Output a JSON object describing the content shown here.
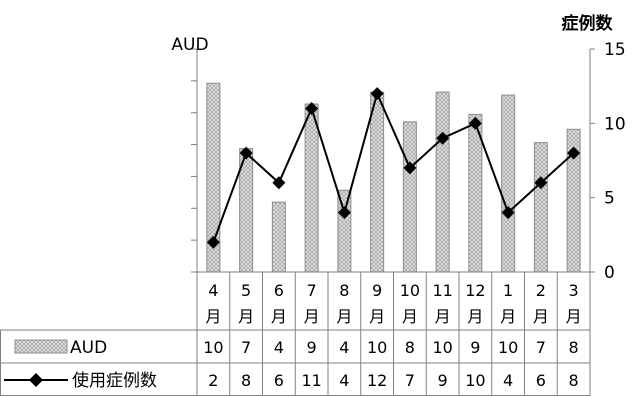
{
  "chart_data": {
    "type": "bar",
    "categories": [
      [
        "4",
        "月"
      ],
      [
        "5",
        "月"
      ],
      [
        "6",
        "月"
      ],
      [
        "7",
        "月"
      ],
      [
        "8",
        "月"
      ],
      [
        "9",
        "月"
      ],
      [
        "10",
        "月"
      ],
      [
        "11",
        "月"
      ],
      [
        "12",
        "月"
      ],
      [
        "1",
        "月"
      ],
      [
        "2",
        "月"
      ],
      [
        "3",
        "月"
      ]
    ],
    "left_axis": {
      "title": "AUD",
      "ticks": [
        "",
        "",
        "",
        "",
        "",
        "",
        "",
        ""
      ]
    },
    "right_axis": {
      "title": "症例数",
      "min": 0,
      "max": 15,
      "ticks": [
        0,
        5,
        10,
        15
      ]
    },
    "series": [
      {
        "name": "AUD",
        "kind": "bar",
        "pattern": "crosshatch",
        "bar_heights": [
          12.7,
          8.3,
          4.7,
          11.3,
          5.5,
          12.1,
          10.1,
          12.1,
          10.6,
          11.9,
          8.7,
          9.6
        ],
        "table_values": [
          10,
          7,
          4,
          9,
          4,
          10,
          8,
          10,
          9,
          10,
          7,
          8
        ]
      },
      {
        "name": "使用症例数",
        "kind": "line",
        "marker": "diamond",
        "values": [
          2,
          8,
          6,
          11,
          4,
          12,
          7,
          9,
          10,
          4,
          6,
          8
        ],
        "table_values": [
          2,
          8,
          6,
          11,
          4,
          12,
          7,
          9,
          10,
          4,
          6,
          8
        ]
      }
    ],
    "data_table": true,
    "legend": "in-table"
  }
}
